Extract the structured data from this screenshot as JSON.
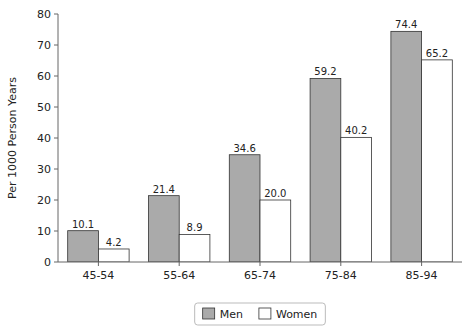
{
  "chart_data": {
    "type": "bar",
    "ylabel": "Per 1000 Person Years",
    "categories": [
      "45-54",
      "55-64",
      "65-74",
      "75-84",
      "85-94"
    ],
    "series": [
      {
        "name": "Men",
        "color": "#aaaaaa",
        "values": [
          10.1,
          21.4,
          34.6,
          59.2,
          74.4
        ]
      },
      {
        "name": "Women",
        "color": "#ffffff",
        "values": [
          4.2,
          8.9,
          20.0,
          40.2,
          65.2
        ],
        "value_labels": [
          "4.2",
          "8.9",
          "20.0",
          "40.2",
          "65.2"
        ]
      }
    ],
    "ylim": [
      0,
      80
    ],
    "yticks": [
      0,
      10,
      20,
      30,
      40,
      50,
      60,
      70,
      80
    ],
    "grid": false,
    "legend": "bottom",
    "data_labels": true
  }
}
